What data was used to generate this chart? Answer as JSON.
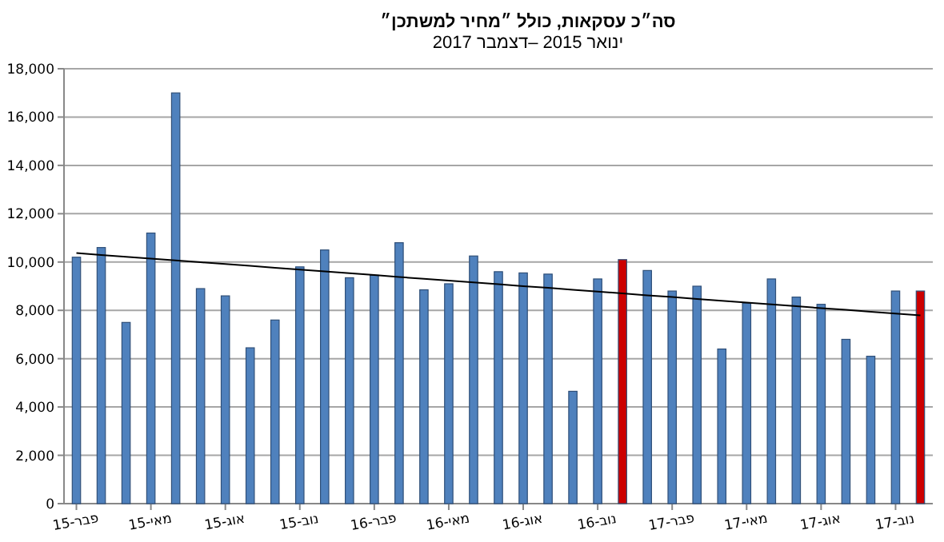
{
  "chart_data": {
    "type": "bar",
    "title": "סה״כ עסקאות, כולל ״מחיר למשתכן״",
    "subtitle": "ינואר 2015 –דצמבר 2017",
    "categories": [
      "פבר-15",
      null,
      null,
      "מאי-15",
      null,
      null,
      "אוג-15",
      null,
      null,
      "נוב-15",
      null,
      null,
      "פבר-16",
      null,
      null,
      "מאי-16",
      null,
      null,
      "אוג-16",
      null,
      null,
      "נוב-16",
      null,
      null,
      "פבר-17",
      null,
      null,
      "מאי-17",
      null,
      null,
      "אוג-17",
      null,
      null,
      "נוב-17",
      null
    ],
    "series": [
      {
        "colors": [
          "#4f81bd",
          "#4f81bd",
          "#4f81bd",
          "#4f81bd",
          "#4f81bd",
          "#4f81bd",
          "#4f81bd",
          "#4f81bd",
          "#4f81bd",
          "#4f81bd",
          "#4f81bd",
          "#4f81bd",
          "#4f81bd",
          "#4f81bd",
          "#4f81bd",
          "#4f81bd",
          "#4f81bd",
          "#4f81bd",
          "#4f81bd",
          "#4f81bd",
          "#4f81bd",
          "#4f81bd",
          "#cc0000",
          "#4f81bd",
          "#4f81bd",
          "#4f81bd",
          "#4f81bd",
          "#4f81bd",
          "#4f81bd",
          "#4f81bd",
          "#4f81bd",
          "#4f81bd",
          "#4f81bd",
          "#4f81bd",
          "#cc0000"
        ],
        "values": [
          10200,
          10600,
          7500,
          11200,
          17000,
          8900,
          8600,
          6450,
          7600,
          9800,
          10500,
          9350,
          9450,
          10800,
          8850,
          9100,
          10250,
          9600,
          9550,
          9500,
          4650,
          9300,
          10100,
          9650,
          8800,
          9000,
          6400,
          8300,
          9300,
          8550,
          8250,
          6800,
          6100,
          8800,
          8800
        ]
      },
      {
        "type": "line",
        "color": "#000000",
        "values": [
          10370,
          10290,
          10220,
          10140,
          10070,
          9990,
          9920,
          9840,
          9760,
          9690,
          9610,
          9540,
          9460,
          9380,
          9310,
          9230,
          9160,
          9080,
          9000,
          8930,
          8850,
          8780,
          8700,
          8620,
          8550,
          8470,
          8400,
          8320,
          8250,
          8170,
          8090,
          8020,
          7940,
          7870,
          7790
        ]
      }
    ],
    "ylim": [
      0,
      18000
    ],
    "yticks": [
      {
        "value": 0,
        "label": "0"
      },
      {
        "value": 2000,
        "label": "2,000"
      },
      {
        "value": 4000,
        "label": "4,000"
      },
      {
        "value": 6000,
        "label": "6,000"
      },
      {
        "value": 8000,
        "label": "8,000"
      },
      {
        "value": 10000,
        "label": "10,000"
      },
      {
        "value": 12000,
        "label": "12,000"
      },
      {
        "value": 14000,
        "label": "14,000"
      },
      {
        "value": 16000,
        "label": "16,000"
      },
      {
        "value": 18000,
        "label": "18,000"
      }
    ],
    "grid": "y"
  }
}
